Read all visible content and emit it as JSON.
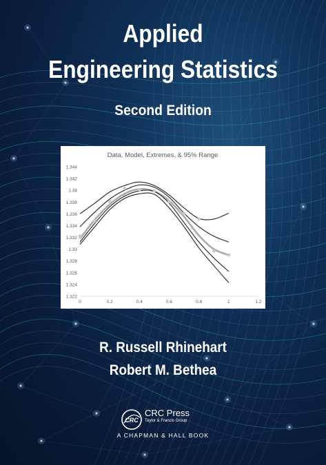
{
  "cover": {
    "title_line1": "Applied",
    "title_line2": "Engineering Statistics",
    "edition": "Second Edition",
    "authors": [
      "R. Russell Rhinehart",
      "Robert M. Bethea"
    ],
    "colors": {
      "background": "#0a1c3a",
      "accent": "#2ad1d1",
      "text": "#ffffff"
    }
  },
  "publisher": {
    "logo_icon": "crc-press-logo",
    "name": "CRC Press",
    "subtitle": "Taylor & Francis Group",
    "imprint": "A CHAPMAN & HALL BOOK"
  },
  "chart_data": {
    "type": "line",
    "title": "Data, Model, Extremes, & 95% Range",
    "xlabel": "",
    "ylabel": "",
    "xlim": [
      0,
      1.2
    ],
    "ylim": [
      1.322,
      1.344
    ],
    "x_ticks": [
      "0",
      "0.2",
      "0.4",
      "0.6",
      "0.8",
      "1",
      "1.2"
    ],
    "y_ticks": [
      "1.322",
      "1.324",
      "1.326",
      "1.328",
      "1.33",
      "1.332",
      "1.334",
      "1.336",
      "1.338",
      "1.34",
      "1.342",
      "1.344"
    ],
    "grid": false,
    "colors": {
      "model": "#aaaaaa",
      "bounds": "#222222",
      "data": "#c8c8c8",
      "axis": "#d9d9d9",
      "tick_text": "#595959"
    },
    "x": [
      0,
      0.1,
      0.2,
      0.3,
      0.4,
      0.5,
      0.6,
      0.7,
      0.8,
      0.9,
      1.0
    ],
    "series": [
      {
        "role": "upper",
        "values": [
          1.336,
          1.3378,
          1.3397,
          1.3408,
          1.3414,
          1.3408,
          1.3392,
          1.337,
          1.3352,
          1.3351,
          1.3361
        ]
      },
      {
        "role": "upper-mid",
        "values": [
          1.3338,
          1.3363,
          1.3385,
          1.34,
          1.3409,
          1.3405,
          1.3388,
          1.3361,
          1.3338,
          1.3322,
          1.3312
        ]
      },
      {
        "role": "model",
        "values": [
          1.3318,
          1.335,
          1.3376,
          1.3394,
          1.3402,
          1.3398,
          1.3382,
          1.3355,
          1.3323,
          1.33,
          1.329
        ]
      },
      {
        "role": "lower-mid",
        "values": [
          1.3312,
          1.3344,
          1.3372,
          1.339,
          1.3399,
          1.3398,
          1.3378,
          1.3345,
          1.3312,
          1.3285,
          1.3262
        ]
      },
      {
        "role": "lower",
        "values": [
          1.3308,
          1.3338,
          1.3367,
          1.3386,
          1.3394,
          1.3393,
          1.337,
          1.3338,
          1.3302,
          1.3272,
          1.3243
        ]
      }
    ],
    "data_points": [
      {
        "x": 0,
        "y": 1.3322
      },
      {
        "x": 0.1,
        "y": 1.3348
      },
      {
        "x": 0.2,
        "y": 1.3381
      },
      {
        "x": 0.3,
        "y": 1.3403
      },
      {
        "x": 0.4,
        "y": 1.3401
      },
      {
        "x": 0.5,
        "y": 1.3399
      },
      {
        "x": 0.6,
        "y": 1.3381
      },
      {
        "x": 0.7,
        "y": 1.336
      },
      {
        "x": 0.8,
        "y": 1.3351
      },
      {
        "x": 0.9,
        "y": 1.3297
      },
      {
        "x": 1.0,
        "y": 1.329
      }
    ]
  }
}
